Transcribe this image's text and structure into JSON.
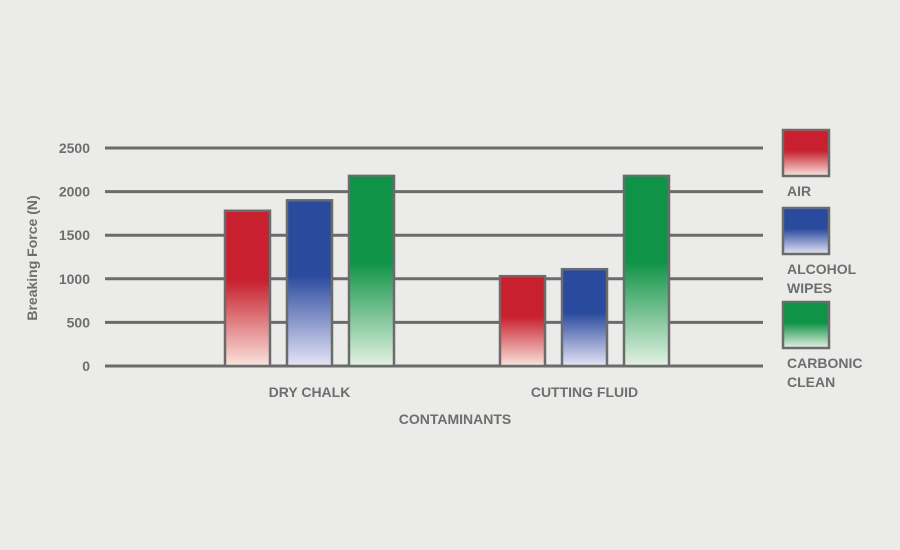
{
  "chart_data": {
    "type": "bar",
    "categories": [
      "DRY CHALK",
      "CUTTING FLUID"
    ],
    "series": [
      {
        "name": "AIR",
        "legend_lines": [
          "AIR"
        ],
        "color": "#c8202e",
        "values": [
          1780,
          1030
        ]
      },
      {
        "name": "ALCOHOL WIPES",
        "legend_lines": [
          "ALCOHOL",
          "WIPES"
        ],
        "color": "#2a4a9e",
        "values": [
          1900,
          1110
        ]
      },
      {
        "name": "CARBONIC CLEAN",
        "legend_lines": [
          "CARBONIC",
          "CLEAN"
        ],
        "color": "#0f9346",
        "values": [
          2180,
          2180
        ]
      }
    ],
    "xlabel": "CONTAMINANTS",
    "ylabel": "Breaking Force (N)",
    "ylim": [
      0,
      2500
    ],
    "yticks": [
      "0",
      "500",
      "1000",
      "1500",
      "2000",
      "2500"
    ],
    "grid": true,
    "legend_position": "right"
  }
}
